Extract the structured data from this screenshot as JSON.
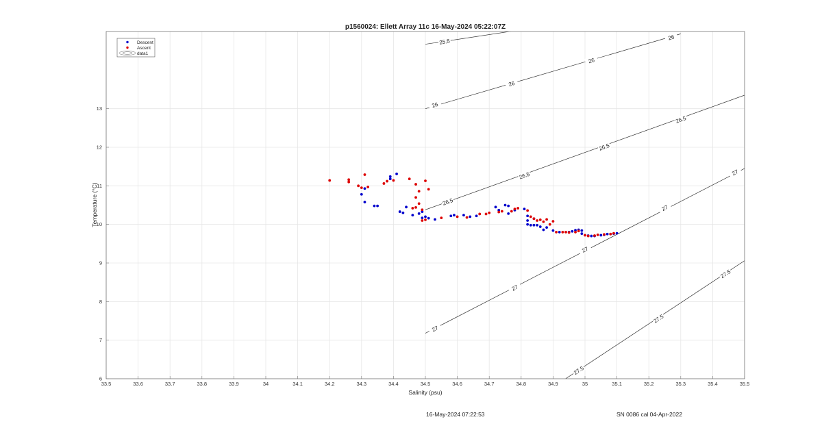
{
  "chart_data": {
    "type": "scatter",
    "title": "p1560024: Ellett Array 11c 16-May-2024 05:22:07Z",
    "xlabel": "Salinity (psu)",
    "ylabel": "Temperature (°C)",
    "xlim": [
      33.5,
      35.5
    ],
    "ylim": [
      6,
      15
    ],
    "x_ticks": [
      "33.5",
      "33.6",
      "33.7",
      "33.8",
      "33.9",
      "34",
      "34.1",
      "34.2",
      "34.3",
      "34.4",
      "34.5",
      "34.6",
      "34.7",
      "34.8",
      "34.9",
      "35",
      "35.1",
      "35.2",
      "35.3",
      "35.4",
      "35.5"
    ],
    "y_ticks": [
      "6",
      "7",
      "8",
      "9",
      "10",
      "11",
      "12",
      "13"
    ],
    "grid": true,
    "legend_position": "top-left",
    "legend": [
      "Descent",
      "Ascent",
      "data1"
    ],
    "colors": {
      "descent": "#0000cc",
      "ascent": "#dd0000",
      "contour": "#333333",
      "grid": "#e6e6e6"
    },
    "series": [
      {
        "name": "Descent",
        "points": [
          [
            34.3,
            10.78
          ],
          [
            34.31,
            10.58
          ],
          [
            34.31,
            10.93
          ],
          [
            34.34,
            10.48
          ],
          [
            34.35,
            10.48
          ],
          [
            34.39,
            11.24
          ],
          [
            34.39,
            11.18
          ],
          [
            34.41,
            11.31
          ],
          [
            34.42,
            10.33
          ],
          [
            34.43,
            10.3
          ],
          [
            34.44,
            10.45
          ],
          [
            34.46,
            10.24
          ],
          [
            34.48,
            10.28
          ],
          [
            34.49,
            10.17
          ],
          [
            34.49,
            10.33
          ],
          [
            34.5,
            10.2
          ],
          [
            34.51,
            10.16
          ],
          [
            34.53,
            10.13
          ],
          [
            34.58,
            10.22
          ],
          [
            34.59,
            10.24
          ],
          [
            34.62,
            10.24
          ],
          [
            34.64,
            10.2
          ],
          [
            34.66,
            10.22
          ],
          [
            34.72,
            10.45
          ],
          [
            34.73,
            10.37
          ],
          [
            34.75,
            10.5
          ],
          [
            34.76,
            10.48
          ],
          [
            34.76,
            10.28
          ],
          [
            34.78,
            10.37
          ],
          [
            34.81,
            10.4
          ],
          [
            34.82,
            10.22
          ],
          [
            34.82,
            10.1
          ],
          [
            34.82,
            10.0
          ],
          [
            34.83,
            9.98
          ],
          [
            34.84,
            9.98
          ],
          [
            34.85,
            9.98
          ],
          [
            34.84,
            10.15
          ],
          [
            34.86,
            9.94
          ],
          [
            34.87,
            9.86
          ],
          [
            34.88,
            9.92
          ],
          [
            34.9,
            9.84
          ],
          [
            34.92,
            9.8
          ],
          [
            34.95,
            9.8
          ],
          [
            34.96,
            9.82
          ],
          [
            34.97,
            9.85
          ],
          [
            34.98,
            9.86
          ],
          [
            34.99,
            9.84
          ],
          [
            34.99,
            9.76
          ],
          [
            35.01,
            9.71
          ],
          [
            35.02,
            9.7
          ],
          [
            35.03,
            9.7
          ],
          [
            35.05,
            9.72
          ],
          [
            35.06,
            9.73
          ],
          [
            35.07,
            9.75
          ],
          [
            35.08,
            9.75
          ],
          [
            35.09,
            9.76
          ],
          [
            35.1,
            9.77
          ]
        ]
      },
      {
        "name": "Ascent",
        "points": [
          [
            34.2,
            11.14
          ],
          [
            34.26,
            11.1
          ],
          [
            34.26,
            11.16
          ],
          [
            34.29,
            11.0
          ],
          [
            34.3,
            10.95
          ],
          [
            34.31,
            11.29
          ],
          [
            34.32,
            10.97
          ],
          [
            34.37,
            11.06
          ],
          [
            34.38,
            11.12
          ],
          [
            34.4,
            11.14
          ],
          [
            34.45,
            11.18
          ],
          [
            34.46,
            10.42
          ],
          [
            34.47,
            11.04
          ],
          [
            34.47,
            10.44
          ],
          [
            34.48,
            10.86
          ],
          [
            34.48,
            10.54
          ],
          [
            34.49,
            10.1
          ],
          [
            34.5,
            10.12
          ],
          [
            34.5,
            11.13
          ],
          [
            34.51,
            10.91
          ],
          [
            34.47,
            10.7
          ],
          [
            34.49,
            10.38
          ],
          [
            34.55,
            10.17
          ],
          [
            34.6,
            10.2
          ],
          [
            34.63,
            10.18
          ],
          [
            34.67,
            10.27
          ],
          [
            34.69,
            10.27
          ],
          [
            34.7,
            10.3
          ],
          [
            34.73,
            10.32
          ],
          [
            34.74,
            10.34
          ],
          [
            34.77,
            10.34
          ],
          [
            34.78,
            10.4
          ],
          [
            34.79,
            10.42
          ],
          [
            34.82,
            10.36
          ],
          [
            34.83,
            10.2
          ],
          [
            34.84,
            10.15
          ],
          [
            34.85,
            10.1
          ],
          [
            34.86,
            10.12
          ],
          [
            34.87,
            10.07
          ],
          [
            34.88,
            10.13
          ],
          [
            34.89,
            10.0
          ],
          [
            34.9,
            10.08
          ],
          [
            34.91,
            9.8
          ],
          [
            34.93,
            9.8
          ],
          [
            34.94,
            9.8
          ],
          [
            34.95,
            9.79
          ],
          [
            34.97,
            9.8
          ],
          [
            34.98,
            9.83
          ],
          [
            35.0,
            9.72
          ],
          [
            35.01,
            9.7
          ],
          [
            35.03,
            9.71
          ],
          [
            35.04,
            9.73
          ],
          [
            35.06,
            9.74
          ],
          [
            35.08,
            9.75
          ],
          [
            35.09,
            9.77
          ]
        ]
      }
    ],
    "isopycnals": [
      {
        "level": "25.5",
        "line": [
          [
            34.5,
            14.67
          ],
          [
            34.82,
            15.07
          ]
        ],
        "labels": [
          [
            34.56,
            14.74
          ]
        ]
      },
      {
        "level": "26",
        "line": [
          [
            34.5,
            13.0
          ],
          [
            35.3,
            14.94
          ]
        ],
        "labels": [
          [
            34.53,
            13.1
          ],
          [
            34.77,
            13.65
          ],
          [
            35.02,
            14.25
          ],
          [
            35.27,
            14.85
          ]
        ]
      },
      {
        "level": "26.5",
        "line": [
          [
            34.5,
            10.38
          ],
          [
            35.5,
            13.35
          ]
        ],
        "labels": [
          [
            34.57,
            10.59
          ],
          [
            34.81,
            11.27
          ],
          [
            35.06,
            12.01
          ],
          [
            35.3,
            12.72
          ]
        ]
      },
      {
        "level": "27",
        "line": [
          [
            34.5,
            7.18
          ],
          [
            35.5,
            11.45
          ]
        ],
        "labels": [
          [
            34.53,
            7.3
          ],
          [
            34.78,
            8.36
          ],
          [
            35.0,
            9.35
          ],
          [
            35.25,
            10.43
          ],
          [
            35.47,
            11.35
          ]
        ]
      },
      {
        "level": "27.5",
        "line": [
          [
            34.93,
            5.95
          ],
          [
            35.5,
            9.06
          ]
        ],
        "labels": [
          [
            34.98,
            6.22
          ],
          [
            35.23,
            7.56
          ],
          [
            35.44,
            8.72
          ]
        ]
      }
    ]
  },
  "footer": {
    "timestamp": "16-May-2024 07:22:53",
    "calibration": "SN 0086 cal 04-Apr-2022"
  }
}
